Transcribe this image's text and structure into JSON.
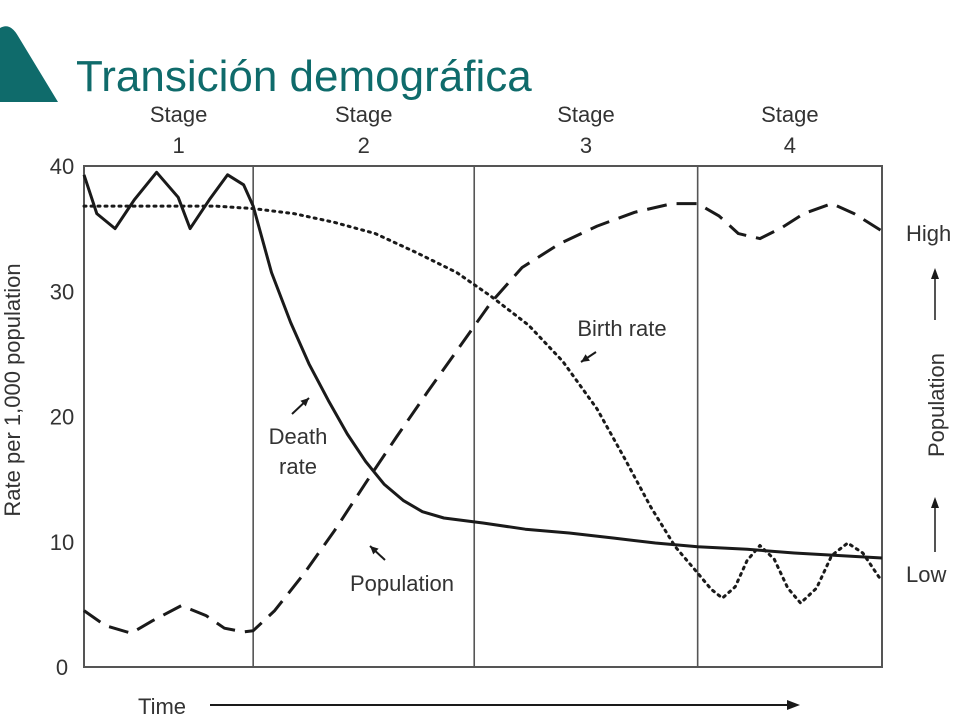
{
  "slide": {
    "title": "Transición demográfica",
    "accent_color": "#0f6b6b"
  },
  "chart_data": {
    "type": "line",
    "ylabel": "Rate per 1,000 population",
    "xlabel": "Time",
    "ylim": [
      0,
      40
    ],
    "yticks": [
      0,
      10,
      20,
      30,
      40
    ],
    "xlim": [
      0,
      1
    ],
    "grid": false,
    "stages": [
      {
        "label": "Stage",
        "number": "1",
        "start": 0.0,
        "end": 0.212
      },
      {
        "label": "Stage",
        "number": "2",
        "start": 0.212,
        "end": 0.489
      },
      {
        "label": "Stage",
        "number": "3",
        "start": 0.489,
        "end": 0.769
      },
      {
        "label": "Stage",
        "number": "4",
        "start": 0.769,
        "end": 1.0
      }
    ],
    "right_axis": {
      "label": "Population",
      "high_label": "High",
      "low_label": "Low"
    },
    "series": [
      {
        "name": "Death rate",
        "style": "solid",
        "points": [
          [
            0,
            39.3
          ],
          [
            0.016,
            36.2
          ],
          [
            0.039,
            35
          ],
          [
            0.063,
            37.3
          ],
          [
            0.091,
            39.5
          ],
          [
            0.118,
            37.5
          ],
          [
            0.133,
            35
          ],
          [
            0.157,
            37.3
          ],
          [
            0.18,
            39.3
          ],
          [
            0.2,
            38.5
          ],
          [
            0.212,
            36.8
          ],
          [
            0.235,
            31.5
          ],
          [
            0.259,
            27.5
          ],
          [
            0.282,
            24.2
          ],
          [
            0.306,
            21.3
          ],
          [
            0.33,
            18.6
          ],
          [
            0.353,
            16.4
          ],
          [
            0.376,
            14.6
          ],
          [
            0.4,
            13.3
          ],
          [
            0.424,
            12.4
          ],
          [
            0.451,
            11.9
          ],
          [
            0.5,
            11.5
          ],
          [
            0.553,
            11
          ],
          [
            0.608,
            10.7
          ],
          [
            0.663,
            10.3
          ],
          [
            0.716,
            9.9
          ],
          [
            0.769,
            9.6
          ],
          [
            0.831,
            9.4
          ],
          [
            0.89,
            9.1
          ],
          [
            0.945,
            8.9
          ],
          [
            1.0,
            8.7
          ]
        ]
      },
      {
        "name": "Birth rate",
        "style": "dotted",
        "points": [
          [
            0,
            36.8
          ],
          [
            0.055,
            36.8
          ],
          [
            0.11,
            36.8
          ],
          [
            0.165,
            36.8
          ],
          [
            0.212,
            36.6
          ],
          [
            0.263,
            36.2
          ],
          [
            0.314,
            35.5
          ],
          [
            0.365,
            34.6
          ],
          [
            0.416,
            33.1
          ],
          [
            0.467,
            31.5
          ],
          [
            0.51,
            29.6
          ],
          [
            0.557,
            27.3
          ],
          [
            0.6,
            24.4
          ],
          [
            0.643,
            20.6
          ],
          [
            0.678,
            16.6
          ],
          [
            0.71,
            12.8
          ],
          [
            0.741,
            9.6
          ],
          [
            0.765,
            7.8
          ],
          [
            0.786,
            6.2
          ],
          [
            0.8,
            5.5
          ],
          [
            0.816,
            6.4
          ],
          [
            0.831,
            8.5
          ],
          [
            0.847,
            9.7
          ],
          [
            0.865,
            8.6
          ],
          [
            0.882,
            6.3
          ],
          [
            0.898,
            5.1
          ],
          [
            0.918,
            6.3
          ],
          [
            0.937,
            8.9
          ],
          [
            0.957,
            9.9
          ],
          [
            0.976,
            9.1
          ],
          [
            0.996,
            7.2
          ],
          [
            1.0,
            6.9
          ]
        ]
      },
      {
        "name": "Population",
        "style": "dashed",
        "points": [
          [
            0,
            4.5
          ],
          [
            0.027,
            3.3
          ],
          [
            0.059,
            2.7
          ],
          [
            0.086,
            3.7
          ],
          [
            0.122,
            4.9
          ],
          [
            0.153,
            4.1
          ],
          [
            0.176,
            3.1
          ],
          [
            0.2,
            2.8
          ],
          [
            0.212,
            2.9
          ],
          [
            0.239,
            4.5
          ],
          [
            0.275,
            7.4
          ],
          [
            0.314,
            10.9
          ],
          [
            0.353,
            14.7
          ],
          [
            0.392,
            18.4
          ],
          [
            0.431,
            22
          ],
          [
            0.471,
            25.6
          ],
          [
            0.51,
            29.1
          ],
          [
            0.549,
            31.9
          ],
          [
            0.596,
            33.8
          ],
          [
            0.643,
            35.2
          ],
          [
            0.69,
            36.3
          ],
          [
            0.737,
            37
          ],
          [
            0.769,
            37
          ],
          [
            0.796,
            36
          ],
          [
            0.82,
            34.6
          ],
          [
            0.847,
            34.2
          ],
          [
            0.875,
            35.1
          ],
          [
            0.902,
            36.2
          ],
          [
            0.937,
            37
          ],
          [
            0.965,
            36.2
          ],
          [
            1.0,
            34.8
          ]
        ]
      }
    ],
    "annotations": [
      {
        "text": "Death",
        "series": "Death rate"
      },
      {
        "text": "rate",
        "series": "Death rate"
      },
      {
        "text": "Birth rate",
        "series": "Birth rate"
      },
      {
        "text": "Population",
        "series": "Population"
      }
    ]
  }
}
